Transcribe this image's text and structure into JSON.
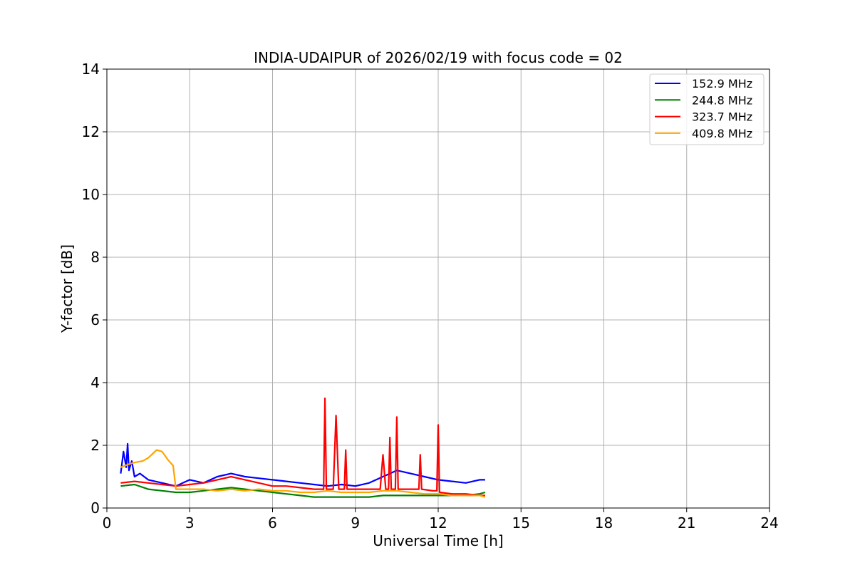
{
  "chart_data": {
    "type": "line",
    "title": "INDIA-UDAIPUR of 2026/02/19 with focus code = 02",
    "xlabel": "Universal Time [h]",
    "ylabel": "Y-factor [dB]",
    "xlim": [
      0,
      24
    ],
    "ylim": [
      0,
      14
    ],
    "xticks": [
      0,
      3,
      6,
      9,
      12,
      15,
      18,
      21,
      24
    ],
    "yticks": [
      0,
      2,
      4,
      6,
      8,
      10,
      12,
      14
    ],
    "grid": true,
    "legend_position": "top-right",
    "series": [
      {
        "name": "152.9 MHz",
        "color": "#0000ff",
        "x": [
          0.5,
          0.6,
          0.7,
          0.75,
          0.8,
          0.9,
          1.0,
          1.2,
          1.5,
          2.0,
          2.5,
          3.0,
          3.5,
          4.0,
          4.5,
          5.0,
          5.5,
          6.0,
          6.5,
          7.0,
          7.5,
          8.0,
          8.5,
          9.0,
          9.5,
          10.0,
          10.5,
          11.0,
          11.5,
          12.0,
          12.5,
          13.0,
          13.5,
          13.7
        ],
        "y": [
          1.1,
          1.8,
          1.3,
          2.05,
          1.2,
          1.5,
          1.0,
          1.1,
          0.9,
          0.8,
          0.7,
          0.9,
          0.8,
          1.0,
          1.1,
          1.0,
          0.95,
          0.9,
          0.85,
          0.8,
          0.75,
          0.7,
          0.75,
          0.7,
          0.8,
          1.0,
          1.2,
          1.1,
          1.0,
          0.9,
          0.85,
          0.8,
          0.9,
          0.9
        ]
      },
      {
        "name": "244.8 MHz",
        "color": "#008000",
        "x": [
          0.5,
          1.0,
          1.5,
          2.0,
          2.5,
          3.0,
          3.5,
          4.0,
          4.5,
          5.0,
          5.5,
          6.0,
          6.5,
          7.0,
          7.5,
          8.0,
          8.5,
          9.0,
          9.5,
          10.0,
          10.5,
          11.0,
          11.5,
          12.0,
          12.5,
          13.0,
          13.5,
          13.7
        ],
        "y": [
          0.7,
          0.75,
          0.6,
          0.55,
          0.5,
          0.5,
          0.55,
          0.6,
          0.65,
          0.6,
          0.55,
          0.5,
          0.45,
          0.4,
          0.35,
          0.35,
          0.35,
          0.35,
          0.35,
          0.4,
          0.4,
          0.4,
          0.4,
          0.4,
          0.4,
          0.4,
          0.45,
          0.5
        ]
      },
      {
        "name": "323.7 MHz",
        "color": "#ff0000",
        "x": [
          0.5,
          1.0,
          1.5,
          2.0,
          2.5,
          3.0,
          3.5,
          4.0,
          4.5,
          5.0,
          5.5,
          6.0,
          6.5,
          7.0,
          7.5,
          7.85,
          7.9,
          7.95,
          8.2,
          8.3,
          8.4,
          8.6,
          8.65,
          8.7,
          9.0,
          9.5,
          9.9,
          10.0,
          10.1,
          10.2,
          10.25,
          10.3,
          10.45,
          10.5,
          10.55,
          10.7,
          11.0,
          11.3,
          11.35,
          11.4,
          11.8,
          11.95,
          12.0,
          12.05,
          12.5,
          13.0,
          13.5,
          13.7
        ],
        "y": [
          0.8,
          0.85,
          0.8,
          0.75,
          0.7,
          0.75,
          0.8,
          0.9,
          1.0,
          0.9,
          0.8,
          0.7,
          0.7,
          0.65,
          0.6,
          0.6,
          3.5,
          0.6,
          0.6,
          2.95,
          0.6,
          0.6,
          1.85,
          0.6,
          0.6,
          0.6,
          0.6,
          1.7,
          0.6,
          0.6,
          2.25,
          0.6,
          0.6,
          2.9,
          0.6,
          0.6,
          0.6,
          0.6,
          1.7,
          0.6,
          0.55,
          0.55,
          2.65,
          0.5,
          0.45,
          0.45,
          0.4,
          0.4
        ]
      },
      {
        "name": "409.8 MHz",
        "color": "#ffa500",
        "x": [
          0.5,
          0.8,
          1.0,
          1.3,
          1.5,
          1.8,
          2.0,
          2.2,
          2.4,
          2.5,
          3.0,
          3.5,
          4.0,
          4.5,
          5.0,
          5.5,
          6.0,
          6.5,
          7.0,
          7.5,
          8.0,
          8.5,
          9.0,
          9.5,
          10.0,
          10.5,
          11.0,
          11.5,
          12.0,
          12.5,
          13.0,
          13.5,
          13.7
        ],
        "y": [
          1.3,
          1.4,
          1.45,
          1.5,
          1.6,
          1.85,
          1.8,
          1.55,
          1.35,
          0.6,
          0.6,
          0.6,
          0.55,
          0.6,
          0.55,
          0.6,
          0.55,
          0.55,
          0.5,
          0.5,
          0.55,
          0.5,
          0.5,
          0.5,
          0.55,
          0.55,
          0.5,
          0.45,
          0.45,
          0.4,
          0.4,
          0.4,
          0.35
        ]
      }
    ]
  }
}
